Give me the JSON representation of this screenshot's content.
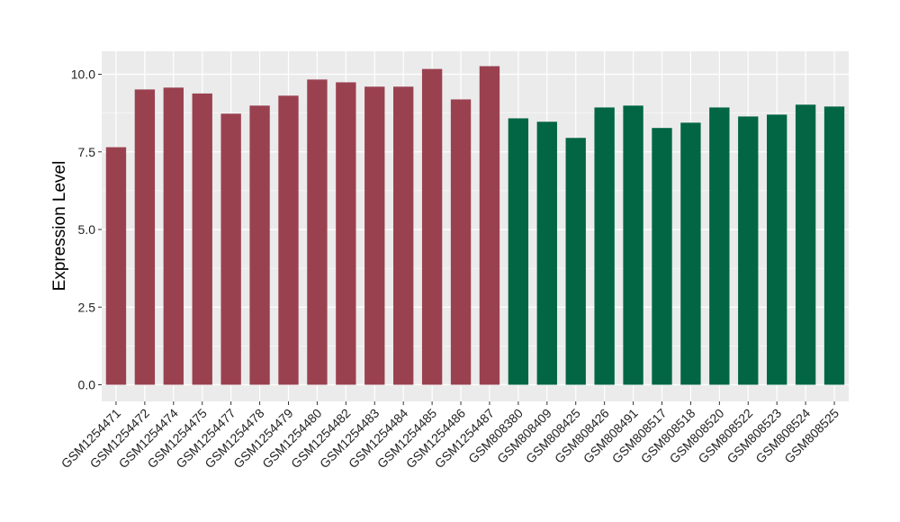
{
  "chart_data": {
    "type": "bar",
    "title": "",
    "xlabel": "",
    "ylabel": "Expression Level",
    "ylim": [
      0,
      10.6
    ],
    "yticks": [
      "0.0",
      "2.5",
      "5.0",
      "7.5",
      "10.0"
    ],
    "grid": true,
    "categories": [
      "GSM1254471",
      "GSM1254472",
      "GSM1254474",
      "GSM1254475",
      "GSM1254477",
      "GSM1254478",
      "GSM1254479",
      "GSM1254480",
      "GSM1254482",
      "GSM1254483",
      "GSM1254484",
      "GSM1254485",
      "GSM1254486",
      "GSM1254487",
      "GSM808380",
      "GSM808409",
      "GSM808425",
      "GSM808426",
      "GSM808491",
      "GSM808517",
      "GSM808518",
      "GSM808520",
      "GSM808522",
      "GSM808523",
      "GSM808524",
      "GSM808525"
    ],
    "values": [
      7.65,
      9.51,
      9.57,
      9.38,
      8.73,
      8.99,
      9.31,
      9.83,
      9.74,
      9.6,
      9.6,
      10.17,
      9.19,
      10.26,
      8.58,
      8.47,
      7.95,
      8.93,
      8.99,
      8.27,
      8.44,
      8.93,
      8.64,
      8.7,
      9.02,
      8.96
    ],
    "group_sizes": [
      14,
      12
    ],
    "colors": [
      "#9a4150",
      "#026645"
    ],
    "panel_background": "#ebebeb"
  }
}
